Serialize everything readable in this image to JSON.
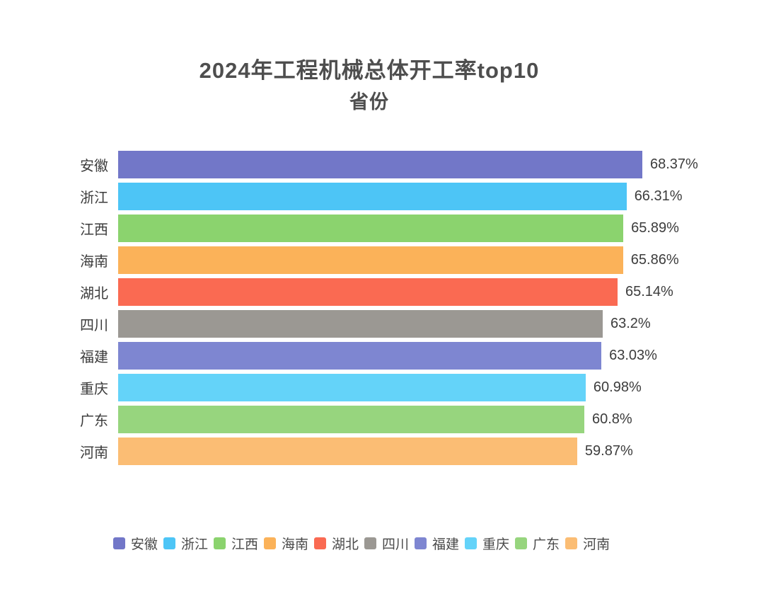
{
  "title": {
    "line1": "2024年工程机械总体开工率top10",
    "line2": "省份"
  },
  "chart_data": {
    "type": "bar",
    "orientation": "horizontal",
    "title": "2024年工程机械总体开工率top10 省份",
    "categories": [
      "安徽",
      "浙江",
      "江西",
      "海南",
      "湖北",
      "四川",
      "福建",
      "重庆",
      "广东",
      "河南"
    ],
    "values": [
      68.37,
      66.31,
      65.89,
      65.86,
      65.14,
      63.2,
      63.03,
      60.98,
      60.8,
      59.87
    ],
    "value_labels": [
      "68.37%",
      "66.31%",
      "65.89%",
      "65.86%",
      "65.14%",
      "63.2%",
      "63.03%",
      "60.98%",
      "60.8%",
      "59.87%"
    ],
    "colors": [
      "#7277C8",
      "#4DC5F6",
      "#8BD36E",
      "#FBB259",
      "#FA6A52",
      "#9B9893",
      "#7E86D1",
      "#64D3F9",
      "#97D57E",
      "#FBBD74"
    ],
    "xlim": [
      0,
      68.37
    ],
    "xlabel": "",
    "ylabel": "",
    "grid": false,
    "legend_position": "bottom",
    "legend": [
      "安徽",
      "浙江",
      "江西",
      "海南",
      "湖北",
      "四川",
      "福建",
      "重庆",
      "广东",
      "河南"
    ]
  },
  "style": {
    "title_color": "#4e4e4e",
    "label_color": "#3c3c3c",
    "legend_text_color": "#4a4a4a",
    "background": "#ffffff"
  }
}
